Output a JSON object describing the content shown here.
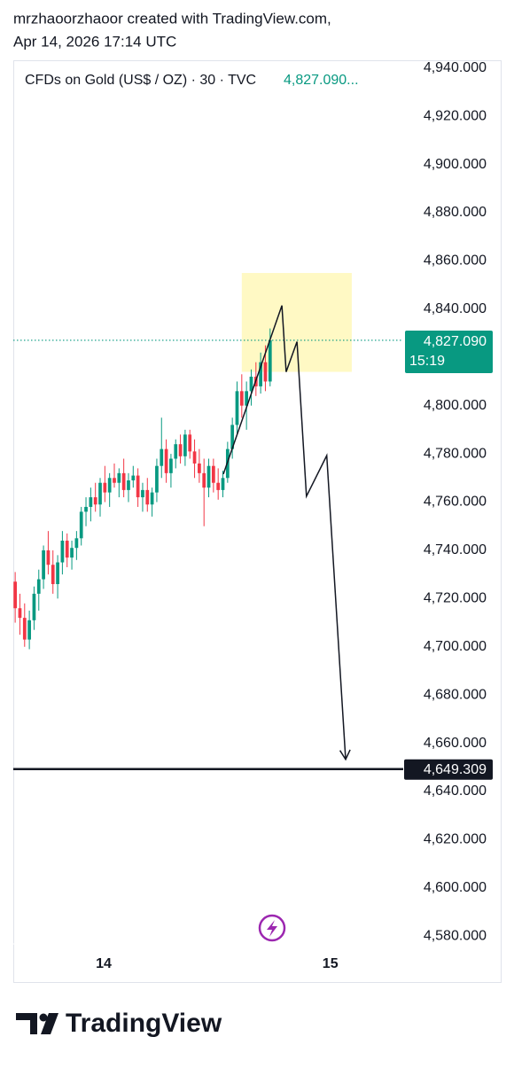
{
  "header": {
    "line1": "mrzhaoorzhaoor created with TradingView.com,",
    "line2": "Apr 14, 2026 17:14 UTC"
  },
  "footer": {
    "brand": "TradingView"
  },
  "chart_data": {
    "type": "candlestick",
    "legend": "CFDs on Gold (US$ / OZ) · 30 · TVC",
    "legend_value": "4,827.090...",
    "up_color": "#089981",
    "down_color": "#f23645",
    "x": [
      0,
      1,
      2,
      3,
      4,
      5,
      6,
      7,
      8,
      9,
      10,
      11,
      12,
      13,
      14,
      15,
      16,
      17,
      18,
      19,
      20,
      21,
      22,
      23,
      24,
      25,
      26,
      27,
      28,
      29,
      30,
      31,
      32,
      33,
      34,
      35,
      36,
      37,
      38,
      39,
      40,
      41,
      42,
      43,
      44,
      45,
      46,
      47,
      48,
      49,
      50,
      51,
      52,
      53,
      54
    ],
    "open": [
      4727,
      4716,
      4712,
      4703,
      4711,
      4722,
      4728,
      4740,
      4734,
      4726,
      4735,
      4744,
      4737,
      4741,
      4745,
      4756,
      4758,
      4762,
      4759,
      4768,
      4764,
      4770,
      4768,
      4772,
      4765,
      4769,
      4771,
      4762,
      4765,
      4759,
      4764,
      4775,
      4782,
      4772,
      4778,
      4784,
      4779,
      4788,
      4781,
      4776,
      4772,
      4766,
      4775,
      4768,
      4765,
      4770,
      4782,
      4792,
      4806,
      4800,
      4806,
      4812,
      4808,
      4818,
      4810
    ],
    "high": [
      4731,
      4722,
      4718,
      4715,
      4725,
      4732,
      4742,
      4748,
      4740,
      4738,
      4748,
      4747,
      4744,
      4748,
      4758,
      4762,
      4766,
      4768,
      4770,
      4775,
      4772,
      4776,
      4774,
      4778,
      4772,
      4775,
      4774,
      4768,
      4770,
      4766,
      4778,
      4795,
      4786,
      4780,
      4786,
      4788,
      4790,
      4790,
      4786,
      4782,
      4778,
      4778,
      4778,
      4774,
      4773,
      4785,
      4795,
      4810,
      4813,
      4810,
      4815,
      4818,
      4822,
      4825,
      4832
    ],
    "low": [
      4710,
      4705,
      4700,
      4699,
      4707,
      4715,
      4724,
      4730,
      4722,
      4720,
      4730,
      4733,
      4732,
      4736,
      4742,
      4750,
      4752,
      4756,
      4754,
      4760,
      4758,
      4766,
      4762,
      4762,
      4760,
      4766,
      4758,
      4756,
      4756,
      4754,
      4760,
      4770,
      4768,
      4766,
      4774,
      4776,
      4775,
      4778,
      4770,
      4768,
      4750,
      4762,
      4764,
      4761,
      4762,
      4768,
      4778,
      4788,
      4795,
      4790,
      4800,
      4804,
      4805,
      4806,
      4808
    ],
    "close": [
      4716,
      4712,
      4703,
      4711,
      4722,
      4728,
      4740,
      4734,
      4726,
      4735,
      4744,
      4737,
      4741,
      4745,
      4756,
      4758,
      4762,
      4759,
      4768,
      4764,
      4770,
      4768,
      4772,
      4765,
      4769,
      4771,
      4762,
      4765,
      4759,
      4764,
      4775,
      4782,
      4772,
      4778,
      4784,
      4779,
      4788,
      4781,
      4776,
      4772,
      4766,
      4775,
      4768,
      4765,
      4770,
      4782,
      4792,
      4806,
      4800,
      4806,
      4812,
      4808,
      4818,
      4810,
      4827.09
    ],
    "xlim": [
      -0.4,
      82.2
    ],
    "xticks": [
      {
        "value": 18.75,
        "label": "14"
      },
      {
        "value": 66.75,
        "label": "15"
      }
    ],
    "ylim": [
      4576.8,
      4943.2
    ],
    "yticks": [
      {
        "value": 4940,
        "label": "4,940.000"
      },
      {
        "value": 4920,
        "label": "4,920.000"
      },
      {
        "value": 4900,
        "label": "4,900.000"
      },
      {
        "value": 4880,
        "label": "4,880.000"
      },
      {
        "value": 4860,
        "label": "4,860.000"
      },
      {
        "value": 4840,
        "label": "4,840.000"
      },
      {
        "value": 4820,
        "label": "4,820.000"
      },
      {
        "value": 4800,
        "label": "4,800.000"
      },
      {
        "value": 4780,
        "label": "4,780.000"
      },
      {
        "value": 4760,
        "label": "4,760.000"
      },
      {
        "value": 4740,
        "label": "4,740.000"
      },
      {
        "value": 4720,
        "label": "4,720.000"
      },
      {
        "value": 4700,
        "label": "4,700.000"
      },
      {
        "value": 4680,
        "label": "4,680.000"
      },
      {
        "value": 4660,
        "label": "4,660.000"
      },
      {
        "value": 4640,
        "label": "4,640.000"
      },
      {
        "value": 4620,
        "label": "4,620.000"
      },
      {
        "value": 4600,
        "label": "4,600.000"
      },
      {
        "value": 4580,
        "label": "4,580.000"
      }
    ],
    "last_price": {
      "value": 4827.09,
      "label": "4,827.090",
      "countdown": "15:19",
      "color": "#089981"
    },
    "hline": {
      "value": 4649.309,
      "label": "4,649.309",
      "color": "#131722"
    },
    "highlight": {
      "x": [
        48,
        71.3
      ],
      "y": [
        4814,
        4855
      ],
      "color": "#fff9c4"
    },
    "projection": {
      "x": [
        44.1,
        56.5,
        57.4,
        59.7,
        61.7,
        66.0,
        70.0
      ],
      "y": [
        4771.6,
        4841.5,
        4814.0,
        4826.5,
        4762.4,
        4779.3,
        4653.3
      ]
    }
  }
}
